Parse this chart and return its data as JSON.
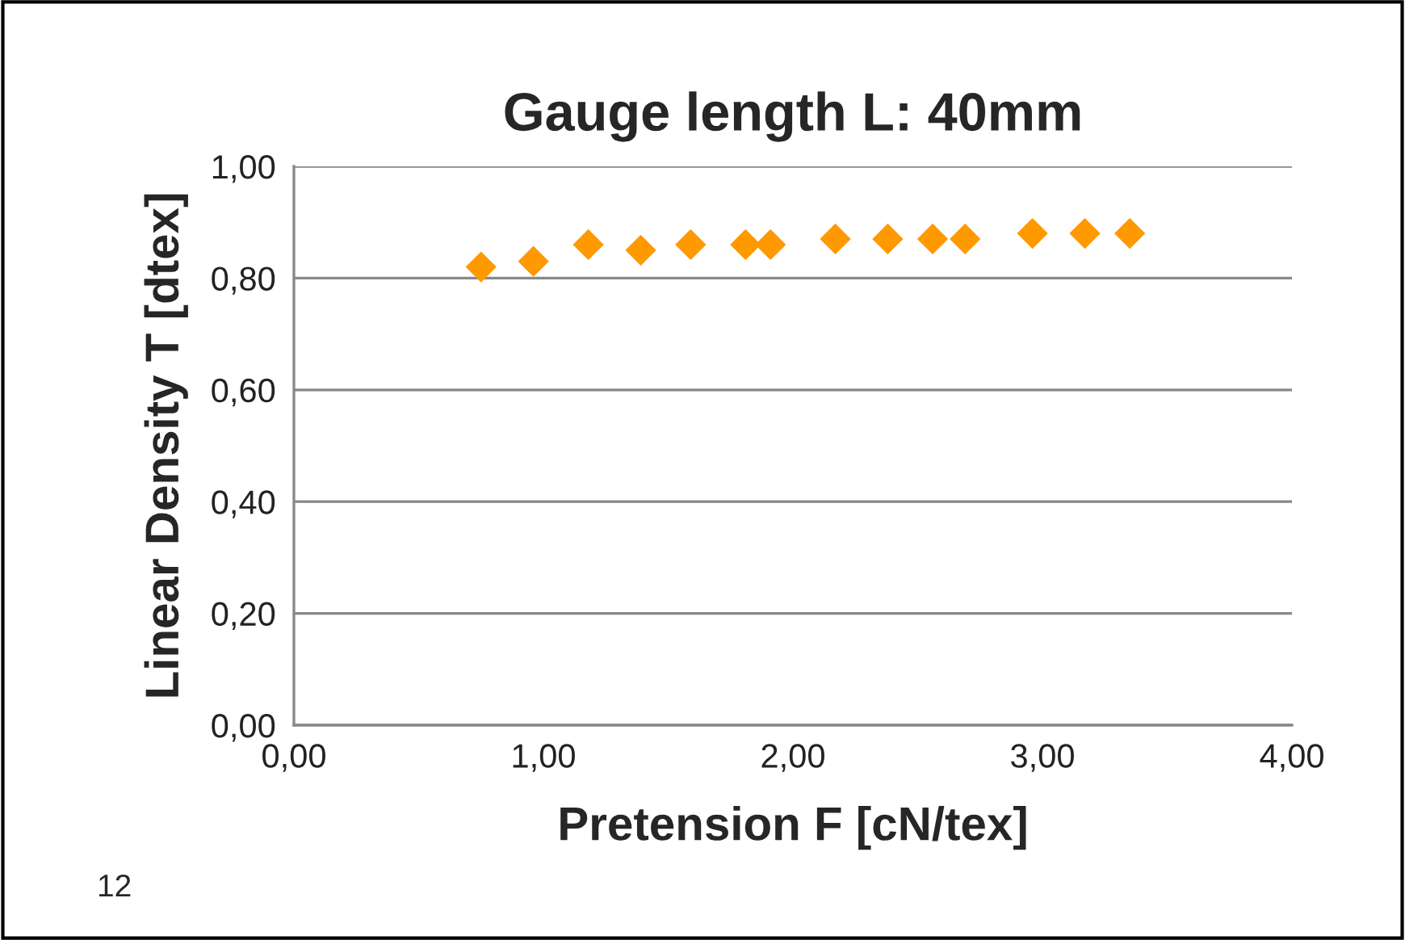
{
  "chart_data": {
    "type": "scatter",
    "title": "Gauge length L: 40mm",
    "xlabel": "Pretension F [cN/tex]",
    "ylabel": "Linear Density T [dtex]",
    "annotations": [
      "12"
    ],
    "x": [
      0.75,
      0.96,
      1.18,
      1.39,
      1.59,
      1.81,
      1.91,
      2.17,
      2.38,
      2.56,
      2.69,
      2.96,
      3.17,
      3.35
    ],
    "series": [
      {
        "color": "#ff9900",
        "values": [
          0.82,
          0.83,
          0.86,
          0.85,
          0.86,
          0.86,
          0.86,
          0.87,
          0.87,
          0.87,
          0.87,
          0.88,
          0.88,
          0.88
        ]
      }
    ],
    "xlim": [
      0,
      4
    ],
    "ylim": [
      0,
      1
    ],
    "xticks": [
      {
        "value": 0,
        "label": "0,00"
      },
      {
        "value": 1,
        "label": "1,00"
      },
      {
        "value": 2,
        "label": "2,00"
      },
      {
        "value": 3,
        "label": "3,00"
      },
      {
        "value": 4,
        "label": "4,00"
      }
    ],
    "yticks": [
      {
        "value": 0,
        "label": "0,00"
      },
      {
        "value": 0.2,
        "label": "0,20"
      },
      {
        "value": 0.4,
        "label": "0,40"
      },
      {
        "value": 0.6,
        "label": "0,60"
      },
      {
        "value": 0.8,
        "label": "0,80"
      },
      {
        "value": 1,
        "label": "1,00"
      }
    ],
    "grid": "y",
    "marker": "diamond",
    "legend": false
  }
}
